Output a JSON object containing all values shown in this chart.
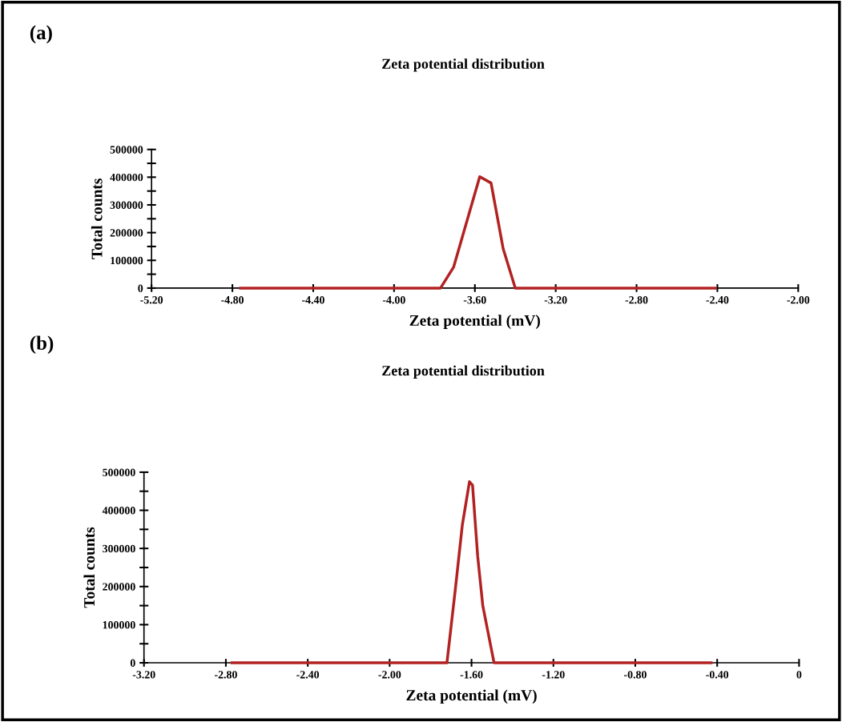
{
  "chart_data": [
    {
      "type": "line",
      "title": "Zeta potential distribution",
      "xlabel": "Zeta potential (mV)",
      "ylabel": "Total counts",
      "annotations": [
        "(a)"
      ],
      "color": "#b22222",
      "x": [
        -4.76,
        -3.77,
        -3.705,
        -3.576,
        -3.52,
        -3.46,
        -3.4,
        -2.41
      ],
      "values": [
        0,
        0,
        76000,
        402000,
        379000,
        142000,
        0,
        0
      ],
      "xlim": [
        -5.2,
        -2.0
      ],
      "xticks": [
        {
          "value": -5.2,
          "label": "-5.20"
        },
        {
          "value": -4.8,
          "label": "-4.80"
        },
        {
          "value": -4.4,
          "label": "-4.40"
        },
        {
          "value": -4.0,
          "label": "-4.00"
        },
        {
          "value": -3.6,
          "label": "-3.60"
        },
        {
          "value": -3.2,
          "label": "-3.20"
        },
        {
          "value": -2.8,
          "label": "-2.80"
        },
        {
          "value": -2.4,
          "label": "-2.40"
        },
        {
          "value": -2.0,
          "label": "-2.00"
        }
      ],
      "ylim": [
        0,
        500000
      ],
      "yticks": [
        0,
        100000,
        200000,
        300000,
        400000,
        500000
      ],
      "grid": false
    },
    {
      "type": "line",
      "title": "Zeta potential distribution",
      "xlabel": "Zeta potential (mV)",
      "ylabel": "Total counts",
      "annotations": [
        "(b)"
      ],
      "color": "#b22222",
      "x": [
        -2.77,
        -1.72,
        -1.678,
        -1.645,
        -1.61,
        -1.595,
        -1.57,
        -1.545,
        -1.49,
        -0.43
      ],
      "values": [
        0,
        0,
        198000,
        361000,
        475000,
        466000,
        280000,
        150000,
        0,
        0
      ],
      "xlim": [
        -3.2,
        0
      ],
      "xticks": [
        {
          "value": -3.2,
          "label": "-3.20"
        },
        {
          "value": -2.8,
          "label": "-2.80"
        },
        {
          "value": -2.4,
          "label": "-2.40"
        },
        {
          "value": -2.0,
          "label": "-2.00"
        },
        {
          "value": -1.6,
          "label": "-1.60"
        },
        {
          "value": -1.2,
          "label": "-1.20"
        },
        {
          "value": -0.8,
          "label": "-0.80"
        },
        {
          "value": -0.4,
          "label": "-0.40"
        },
        0
      ],
      "ylim": [
        0,
        500000
      ],
      "yticks": [
        0,
        100000,
        200000,
        300000,
        400000,
        500000
      ],
      "grid": false
    }
  ]
}
